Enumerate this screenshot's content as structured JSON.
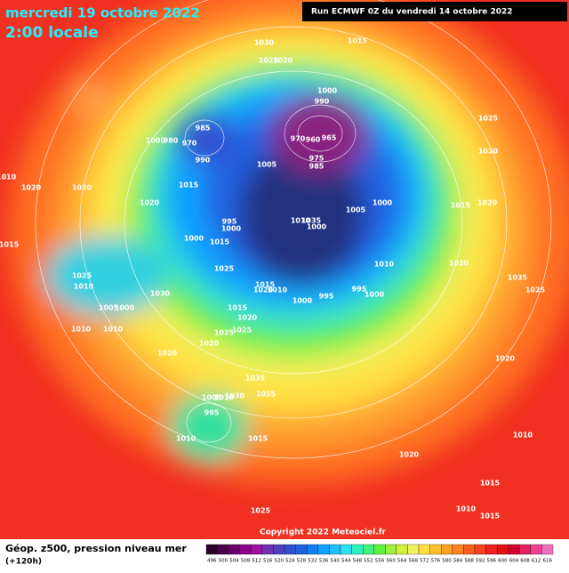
{
  "header": {
    "date": "mercredi 19 octobre 2022",
    "time": "2:00 locale",
    "run": "Run ECMWF 0Z du vendredi 14 octobre 2022"
  },
  "copyright": "Copyright 2022 Meteociel.fr",
  "footer": {
    "title": "Géop. z500, pression niveau mer",
    "lead": "(+120h)"
  },
  "colorbar": {
    "labels": [
      "496",
      "500",
      "504",
      "508",
      "512",
      "516",
      "520",
      "524",
      "528",
      "532",
      "536",
      "540",
      "544",
      "548",
      "552",
      "556",
      "560",
      "564",
      "568",
      "572",
      "576",
      "580",
      "584",
      "588",
      "592",
      "596",
      "600",
      "604",
      "608",
      "612",
      "616"
    ],
    "colors": [
      "#2a002a",
      "#4a004a",
      "#6a006a",
      "#8a008a",
      "#a010a0",
      "#7030b0",
      "#5040c0",
      "#3050d0",
      "#2060e0",
      "#1080f0",
      "#10a0ff",
      "#20c0ff",
      "#30e0f0",
      "#30f0c0",
      "#40f080",
      "#60f040",
      "#a0f040",
      "#d0f040",
      "#f0f060",
      "#ffe040",
      "#ffc030",
      "#ffa020",
      "#ff8020",
      "#ff6020",
      "#f84020",
      "#f02020",
      "#e01010",
      "#d00030",
      "#e02060",
      "#f04090",
      "#f070c0"
    ]
  },
  "isobars": [
    "1030",
    "1015",
    "1025",
    "1020",
    "1000",
    "990",
    "985",
    "1000",
    "980",
    "970",
    "990",
    "970",
    "960",
    "965",
    "975",
    "985",
    "1005",
    "1025",
    "1030",
    "1010",
    "1020",
    "1020",
    "1015",
    "1020",
    "1000",
    "1005",
    "1010",
    "1035",
    "1000",
    "995",
    "1000",
    "1015",
    "1020",
    "1015",
    "1000",
    "1015",
    "1010",
    "1020",
    "1025",
    "1025",
    "1030",
    "1010",
    "1015",
    "1010",
    "995",
    "995",
    "1000",
    "1000",
    "1020",
    "1005",
    "1000",
    "1015",
    "1035",
    "1025",
    "1020",
    "1010",
    "1010",
    "1025",
    "1025",
    "1020",
    "1020",
    "1020",
    "1035",
    "1005",
    "1010",
    "1030",
    "1035",
    "995",
    "1015",
    "1010",
    "1020",
    "1015",
    "1010",
    "1015",
    "1025",
    "1010"
  ]
}
